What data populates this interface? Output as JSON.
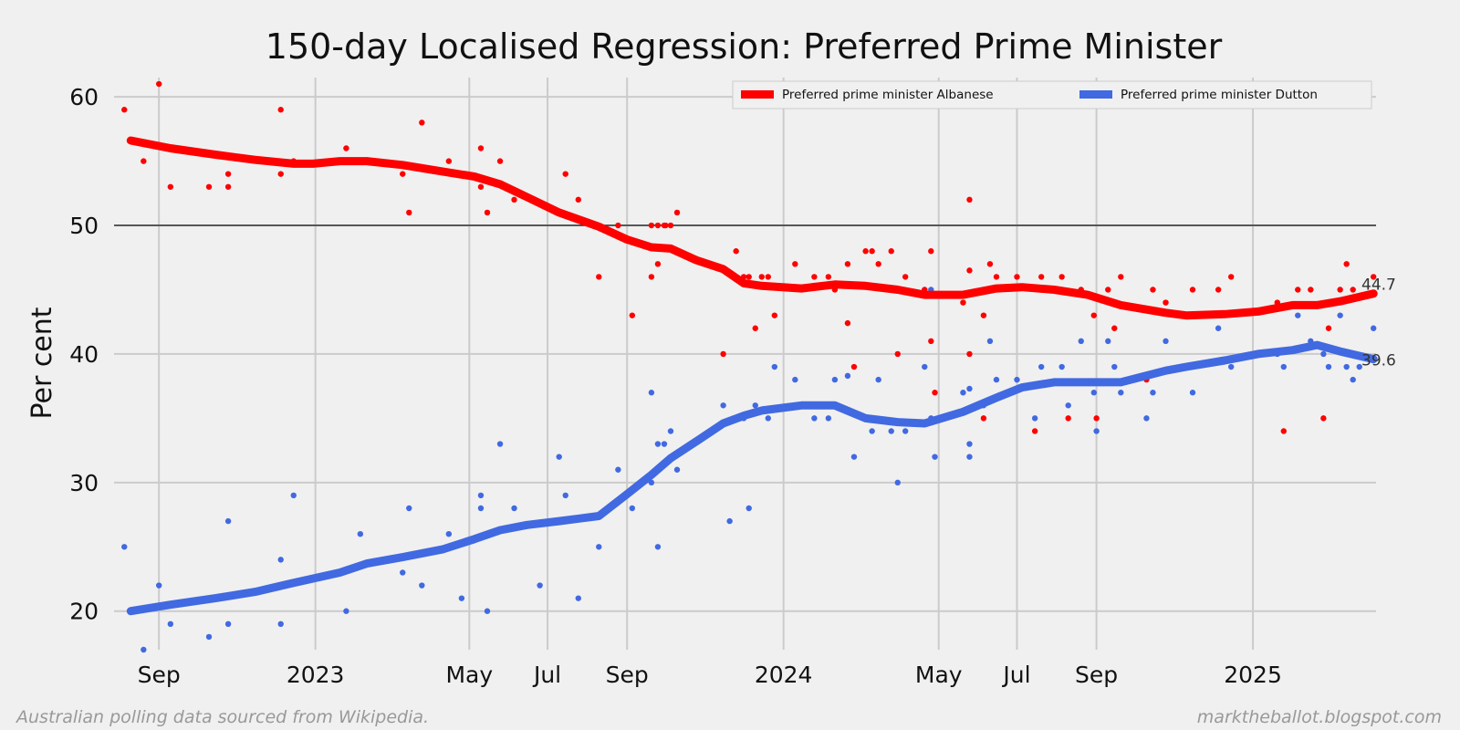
{
  "chart_data": {
    "type": "line",
    "title": "150-day Localised Regression: Preferred Prime Minister",
    "ylabel": "Per cent",
    "xlabel": "",
    "ylim": [
      17,
      61.5
    ],
    "y_ticks": [
      20,
      30,
      40,
      50,
      60
    ],
    "reference_line": 50,
    "grid": true,
    "legend_position": "top-right",
    "x_range": [
      "2022-07-28",
      "2025-04-07"
    ],
    "x_ticks": [
      {
        "date": "2022-09-01",
        "label": "Sep"
      },
      {
        "date": "2023-01-01",
        "label": "2023"
      },
      {
        "date": "2023-05-01",
        "label": "May"
      },
      {
        "date": "2023-07-01",
        "label": "Jul"
      },
      {
        "date": "2023-09-01",
        "label": "Sep"
      },
      {
        "date": "2024-01-01",
        "label": "2024"
      },
      {
        "date": "2024-05-01",
        "label": "May"
      },
      {
        "date": "2024-07-01",
        "label": "Jul"
      },
      {
        "date": "2024-09-01",
        "label": "Sep"
      },
      {
        "date": "2025-01-01",
        "label": "2025"
      }
    ],
    "series": [
      {
        "name": "Preferred prime minister Albanese",
        "color": "#ff0000",
        "end_label": "44.7",
        "trend": [
          [
            "2022-08-10",
            56.6
          ],
          [
            "2022-09-10",
            56.0
          ],
          [
            "2022-10-15",
            55.5
          ],
          [
            "2022-11-15",
            55.1
          ],
          [
            "2022-12-15",
            54.8
          ],
          [
            "2022-12-30",
            54.8
          ],
          [
            "2023-01-20",
            55.0
          ],
          [
            "2023-02-10",
            55.0
          ],
          [
            "2023-03-10",
            54.7
          ],
          [
            "2023-04-10",
            54.2
          ],
          [
            "2023-05-05",
            53.8
          ],
          [
            "2023-05-25",
            53.2
          ],
          [
            "2023-06-15",
            52.2
          ],
          [
            "2023-07-10",
            51.0
          ],
          [
            "2023-08-10",
            49.9
          ],
          [
            "2023-09-01",
            48.9
          ],
          [
            "2023-09-20",
            48.3
          ],
          [
            "2023-10-05",
            48.2
          ],
          [
            "2023-10-25",
            47.3
          ],
          [
            "2023-11-15",
            46.6
          ],
          [
            "2023-12-01",
            45.5
          ],
          [
            "2023-12-15",
            45.3
          ],
          [
            "2024-01-15",
            45.1
          ],
          [
            "2024-02-10",
            45.4
          ],
          [
            "2024-03-05",
            45.3
          ],
          [
            "2024-03-30",
            45.0
          ],
          [
            "2024-04-20",
            44.6
          ],
          [
            "2024-05-20",
            44.6
          ],
          [
            "2024-06-15",
            45.1
          ],
          [
            "2024-07-05",
            45.2
          ],
          [
            "2024-07-30",
            45.0
          ],
          [
            "2024-08-25",
            44.6
          ],
          [
            "2024-09-20",
            43.8
          ],
          [
            "2024-10-25",
            43.2
          ],
          [
            "2024-11-10",
            43.0
          ],
          [
            "2024-12-10",
            43.1
          ],
          [
            "2025-01-05",
            43.3
          ],
          [
            "2025-02-01",
            43.8
          ],
          [
            "2025-02-20",
            43.8
          ],
          [
            "2025-03-10",
            44.1
          ],
          [
            "2025-04-05",
            44.7
          ]
        ],
        "points": [
          [
            "2022-08-05",
            59
          ],
          [
            "2022-08-20",
            55
          ],
          [
            "2022-09-01",
            61
          ],
          [
            "2022-09-10",
            53
          ],
          [
            "2022-10-10",
            53
          ],
          [
            "2022-10-25",
            54
          ],
          [
            "2022-10-25",
            53
          ],
          [
            "2022-12-05",
            59
          ],
          [
            "2022-12-05",
            54
          ],
          [
            "2022-12-15",
            55
          ],
          [
            "2023-01-25",
            56
          ],
          [
            "2023-03-10",
            54
          ],
          [
            "2023-03-15",
            51
          ],
          [
            "2023-03-25",
            58
          ],
          [
            "2023-04-15",
            55
          ],
          [
            "2023-05-10",
            53
          ],
          [
            "2023-05-10",
            56
          ],
          [
            "2023-05-15",
            51
          ],
          [
            "2023-05-25",
            55
          ],
          [
            "2023-06-05",
            52
          ],
          [
            "2023-07-15",
            54
          ],
          [
            "2023-07-25",
            52
          ],
          [
            "2023-08-10",
            46
          ],
          [
            "2023-08-25",
            50
          ],
          [
            "2023-09-05",
            43
          ],
          [
            "2023-09-20",
            50
          ],
          [
            "2023-09-20",
            46
          ],
          [
            "2023-09-25",
            47
          ],
          [
            "2023-09-25",
            50
          ],
          [
            "2023-09-30",
            50
          ],
          [
            "2023-10-01",
            50
          ],
          [
            "2023-10-05",
            50
          ],
          [
            "2023-10-10",
            51
          ],
          [
            "2023-11-15",
            40
          ],
          [
            "2023-11-25",
            48
          ],
          [
            "2023-12-01",
            46
          ],
          [
            "2023-12-05",
            46
          ],
          [
            "2023-12-10",
            42
          ],
          [
            "2023-12-15",
            46
          ],
          [
            "2023-12-20",
            46
          ],
          [
            "2023-12-25",
            43
          ],
          [
            "2024-01-10",
            47
          ],
          [
            "2024-01-25",
            46
          ],
          [
            "2024-02-05",
            46
          ],
          [
            "2024-02-10",
            45
          ],
          [
            "2024-02-20",
            42.4
          ],
          [
            "2024-02-20",
            47
          ],
          [
            "2024-02-25",
            39
          ],
          [
            "2024-03-05",
            48
          ],
          [
            "2024-03-10",
            48
          ],
          [
            "2024-03-15",
            47
          ],
          [
            "2024-03-25",
            48
          ],
          [
            "2024-03-30",
            40
          ],
          [
            "2024-04-05",
            46
          ],
          [
            "2024-04-20",
            45
          ],
          [
            "2024-04-25",
            48
          ],
          [
            "2024-04-25",
            41
          ],
          [
            "2024-04-28",
            37
          ],
          [
            "2024-05-20",
            44
          ],
          [
            "2024-05-25",
            52
          ],
          [
            "2024-05-25",
            46.5
          ],
          [
            "2024-05-25",
            40
          ],
          [
            "2024-06-05",
            43
          ],
          [
            "2024-06-05",
            35
          ],
          [
            "2024-06-10",
            47
          ],
          [
            "2024-06-15",
            46
          ],
          [
            "2024-07-01",
            46
          ],
          [
            "2024-07-15",
            34
          ],
          [
            "2024-07-20",
            46
          ],
          [
            "2024-08-05",
            46
          ],
          [
            "2024-08-10",
            35
          ],
          [
            "2024-08-20",
            45
          ],
          [
            "2024-08-30",
            43
          ],
          [
            "2024-09-01",
            35
          ],
          [
            "2024-09-10",
            45
          ],
          [
            "2024-09-15",
            42
          ],
          [
            "2024-09-20",
            46
          ],
          [
            "2024-10-10",
            38
          ],
          [
            "2024-10-15",
            45
          ],
          [
            "2024-10-25",
            44
          ],
          [
            "2024-11-15",
            45
          ],
          [
            "2024-12-05",
            45
          ],
          [
            "2024-12-15",
            46
          ],
          [
            "2025-01-25",
            34
          ],
          [
            "2025-01-20",
            44
          ],
          [
            "2025-02-05",
            45
          ],
          [
            "2025-02-15",
            45
          ],
          [
            "2025-02-25",
            35
          ],
          [
            "2025-03-01",
            42
          ],
          [
            "2025-03-10",
            45
          ],
          [
            "2025-03-15",
            47
          ],
          [
            "2025-03-20",
            45
          ],
          [
            "2025-04-05",
            46
          ]
        ]
      },
      {
        "name": "Preferred prime minister Dutton",
        "color": "#4169e1",
        "end_label": "39.6",
        "trend": [
          [
            "2022-08-10",
            20.0
          ],
          [
            "2022-09-10",
            20.5
          ],
          [
            "2022-10-15",
            21.0
          ],
          [
            "2022-11-15",
            21.5
          ],
          [
            "2022-12-15",
            22.2
          ],
          [
            "2023-01-20",
            23.0
          ],
          [
            "2023-02-10",
            23.7
          ],
          [
            "2023-03-10",
            24.2
          ],
          [
            "2023-04-10",
            24.8
          ],
          [
            "2023-05-05",
            25.6
          ],
          [
            "2023-05-25",
            26.3
          ],
          [
            "2023-06-15",
            26.7
          ],
          [
            "2023-07-10",
            27.0
          ],
          [
            "2023-08-10",
            27.4
          ],
          [
            "2023-09-01",
            29.1
          ],
          [
            "2023-09-20",
            30.6
          ],
          [
            "2023-10-05",
            31.9
          ],
          [
            "2023-10-25",
            33.2
          ],
          [
            "2023-11-15",
            34.6
          ],
          [
            "2023-12-01",
            35.2
          ],
          [
            "2023-12-15",
            35.6
          ],
          [
            "2024-01-15",
            36.0
          ],
          [
            "2024-02-10",
            36.0
          ],
          [
            "2024-03-05",
            35.0
          ],
          [
            "2024-03-30",
            34.7
          ],
          [
            "2024-04-20",
            34.6
          ],
          [
            "2024-05-20",
            35.5
          ],
          [
            "2024-06-15",
            36.6
          ],
          [
            "2024-07-05",
            37.4
          ],
          [
            "2024-07-30",
            37.8
          ],
          [
            "2024-08-25",
            37.8
          ],
          [
            "2024-09-20",
            37.8
          ],
          [
            "2024-10-25",
            38.7
          ],
          [
            "2024-11-10",
            39.0
          ],
          [
            "2024-12-10",
            39.5
          ],
          [
            "2025-01-05",
            40.0
          ],
          [
            "2025-02-01",
            40.3
          ],
          [
            "2025-02-20",
            40.7
          ],
          [
            "2025-03-10",
            40.2
          ],
          [
            "2025-04-05",
            39.6
          ]
        ],
        "points": [
          [
            "2022-08-05",
            25
          ],
          [
            "2022-08-20",
            17
          ],
          [
            "2022-09-01",
            22
          ],
          [
            "2022-09-10",
            19
          ],
          [
            "2022-10-10",
            18
          ],
          [
            "2022-10-25",
            27
          ],
          [
            "2022-10-25",
            19
          ],
          [
            "2022-12-05",
            24
          ],
          [
            "2022-12-05",
            19
          ],
          [
            "2022-12-15",
            29
          ],
          [
            "2023-01-25",
            20
          ],
          [
            "2023-02-05",
            26
          ],
          [
            "2023-03-10",
            23
          ],
          [
            "2023-03-15",
            28
          ],
          [
            "2023-03-25",
            22
          ],
          [
            "2023-04-15",
            26
          ],
          [
            "2023-04-25",
            21
          ],
          [
            "2023-05-10",
            28
          ],
          [
            "2023-05-10",
            29
          ],
          [
            "2023-05-15",
            20
          ],
          [
            "2023-05-25",
            33
          ],
          [
            "2023-06-05",
            28
          ],
          [
            "2023-06-25",
            22
          ],
          [
            "2023-07-10",
            32
          ],
          [
            "2023-07-15",
            29
          ],
          [
            "2023-07-25",
            21
          ],
          [
            "2023-08-10",
            25
          ],
          [
            "2023-08-25",
            31
          ],
          [
            "2023-09-05",
            28
          ],
          [
            "2023-09-20",
            30
          ],
          [
            "2023-09-20",
            37
          ],
          [
            "2023-09-25",
            33
          ],
          [
            "2023-09-25",
            25
          ],
          [
            "2023-09-30",
            33
          ],
          [
            "2023-10-05",
            34
          ],
          [
            "2023-10-10",
            31
          ],
          [
            "2023-11-15",
            36
          ],
          [
            "2023-11-20",
            27
          ],
          [
            "2023-12-01",
            35
          ],
          [
            "2023-12-05",
            28
          ],
          [
            "2023-12-10",
            36
          ],
          [
            "2023-12-20",
            35
          ],
          [
            "2023-12-25",
            39
          ],
          [
            "2024-01-10",
            38
          ],
          [
            "2024-01-25",
            35
          ],
          [
            "2024-02-05",
            35
          ],
          [
            "2024-02-10",
            38
          ],
          [
            "2024-02-20",
            38.3
          ],
          [
            "2024-02-25",
            32
          ],
          [
            "2024-03-05",
            35
          ],
          [
            "2024-03-10",
            34
          ],
          [
            "2024-03-15",
            38
          ],
          [
            "2024-03-25",
            34
          ],
          [
            "2024-03-30",
            30
          ],
          [
            "2024-04-05",
            34
          ],
          [
            "2024-04-20",
            39
          ],
          [
            "2024-04-25",
            35
          ],
          [
            "2024-04-25",
            45
          ],
          [
            "2024-04-28",
            32
          ],
          [
            "2024-05-20",
            37
          ],
          [
            "2024-05-25",
            37.3
          ],
          [
            "2024-05-25",
            33
          ],
          [
            "2024-05-25",
            32
          ],
          [
            "2024-06-05",
            36
          ],
          [
            "2024-06-10",
            41
          ],
          [
            "2024-06-15",
            38
          ],
          [
            "2024-07-01",
            38
          ],
          [
            "2024-07-15",
            35
          ],
          [
            "2024-07-20",
            39
          ],
          [
            "2024-08-05",
            39
          ],
          [
            "2024-08-10",
            36
          ],
          [
            "2024-08-20",
            41
          ],
          [
            "2024-08-30",
            37
          ],
          [
            "2024-09-01",
            34
          ],
          [
            "2024-09-10",
            41
          ],
          [
            "2024-09-15",
            39
          ],
          [
            "2024-09-20",
            37
          ],
          [
            "2024-10-10",
            35
          ],
          [
            "2024-10-15",
            37
          ],
          [
            "2024-10-25",
            41
          ],
          [
            "2024-11-15",
            37
          ],
          [
            "2024-12-05",
            42
          ],
          [
            "2024-12-15",
            39
          ],
          [
            "2025-01-25",
            39
          ],
          [
            "2025-01-20",
            40
          ],
          [
            "2025-02-05",
            43
          ],
          [
            "2025-02-15",
            41
          ],
          [
            "2025-02-25",
            40
          ],
          [
            "2025-03-01",
            39
          ],
          [
            "2025-03-10",
            43
          ],
          [
            "2025-03-15",
            39
          ],
          [
            "2025-03-20",
            38
          ],
          [
            "2025-03-25",
            39
          ],
          [
            "2025-04-05",
            42
          ]
        ]
      }
    ]
  },
  "footer": {
    "source_note": "Australian polling data sourced from Wikipedia.",
    "site": "marktheballot.blogspot.com"
  }
}
